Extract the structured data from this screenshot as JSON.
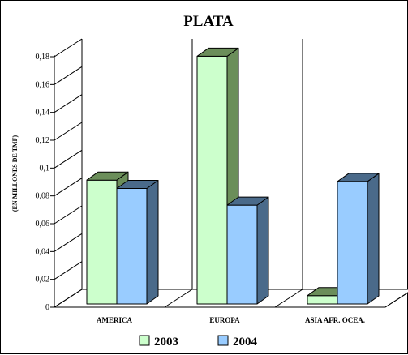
{
  "chart_data": {
    "type": "bar",
    "title": "PLATA",
    "ylabel": "(EN MILLONES DE TMF)",
    "xlabel": "",
    "categories": [
      "AMERICA",
      "EUROPA",
      "ASIA AFR. OCEA."
    ],
    "series": [
      {
        "name": "2003",
        "values": [
          0.089,
          0.178,
          0.006
        ],
        "color": "#ccffcc",
        "side_color": "#6b8e5a"
      },
      {
        "name": "2004",
        "values": [
          0.083,
          0.071,
          0.088
        ],
        "color": "#99ccff",
        "side_color": "#4a6a8a"
      }
    ],
    "ylim": [
      0,
      0.18
    ],
    "yticks": [
      "0",
      "0,02",
      "0,04",
      "0,06",
      "0,08",
      "0,1",
      "0,12",
      "0,14",
      "0,16",
      "0,18"
    ],
    "grid": false,
    "legend_position": "bottom",
    "style": "3d"
  }
}
